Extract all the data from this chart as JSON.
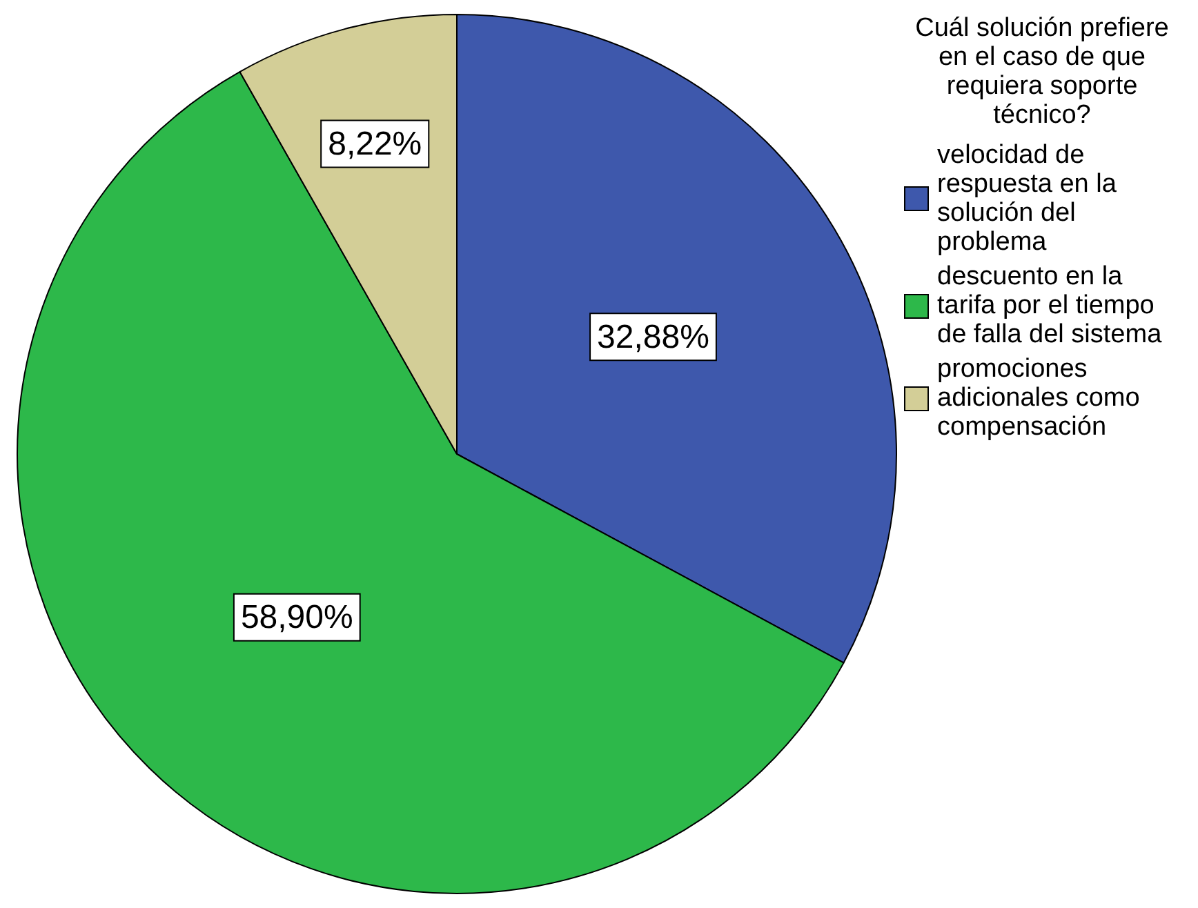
{
  "chart_data": {
    "type": "pie",
    "legend_title": "Cuál solución prefiere en el caso de que requiera soporte técnico?",
    "categories": [
      "velocidad de respuesta en la solución del problema",
      "descuento en la tarifa por el tiempo de falla del sistema",
      "promociones adicionales como compensación"
    ],
    "values": [
      32.88,
      58.9,
      8.22
    ],
    "colors": [
      "#3e58ac",
      "#2db84a",
      "#d3ce97"
    ],
    "value_labels": [
      "32,88%",
      "58,90%",
      "8,22%"
    ],
    "legend": "right"
  }
}
